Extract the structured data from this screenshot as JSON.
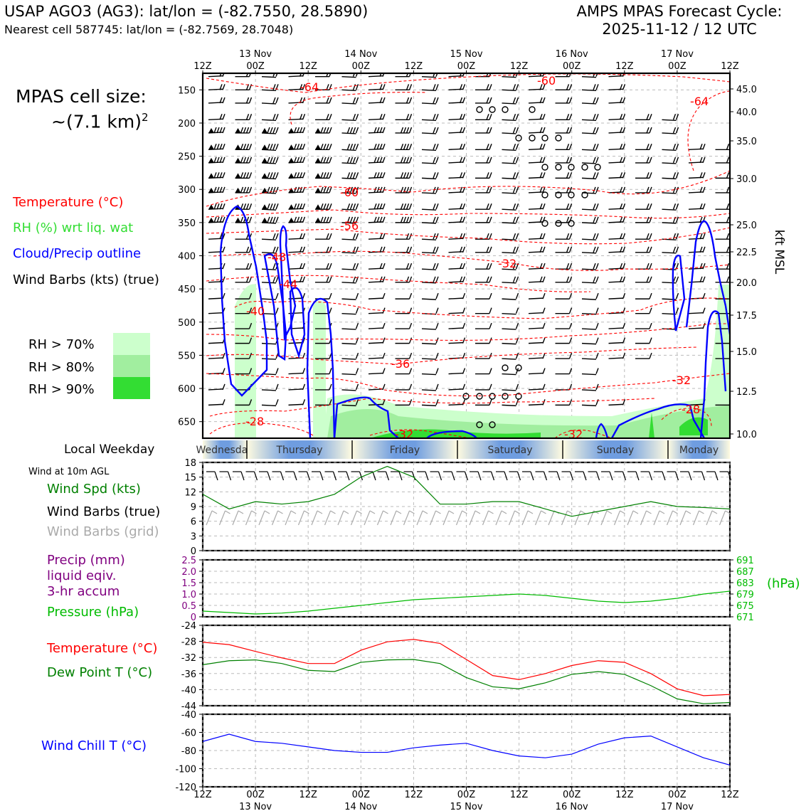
{
  "header": {
    "station_title": "USAP AGO3 (AG3): lat/lon = (-82.7550, 28.5890)",
    "nearest_cell": "Nearest cell 587745: lat/lon = (-82.7569, 28.7048)",
    "forecast_title": "AMPS MPAS Forecast Cycle:",
    "forecast_cycle": "2025-11-12 / 12 UTC"
  },
  "cell_size": {
    "line1": "MPAS cell size:",
    "line2": "~(7.1 km)",
    "exponent": "2"
  },
  "upper_legend": {
    "temperature": "Temperature (°C)",
    "rh": "RH (%) wrt liq. wat",
    "cloud": "Cloud/Precip outline",
    "wind": "Wind Barbs (kts) (true)",
    "rh70": "RH > 70%",
    "rh80": "RH > 80%",
    "rh90": "RH > 90%"
  },
  "colors": {
    "temperature": "#ff0000",
    "rh_label": "#33dd33",
    "cloud": "#0000ff",
    "wind_speed": "#008000",
    "precip": "#800080",
    "pressure": "#00bb00",
    "dewpoint": "#008000",
    "windchill": "#0000ff",
    "rh70": "#ccffcc",
    "rh80": "#a1ee9f",
    "rh90": "#33dd33",
    "grid_barb": "#aaaaaa"
  },
  "time_axis": {
    "top_ticks": [
      "12Z",
      "00Z",
      "12Z",
      "00Z",
      "12Z",
      "00Z",
      "12Z",
      "00Z",
      "12Z",
      "00Z",
      "12Z"
    ],
    "dates": [
      "13 Nov",
      "14 Nov",
      "15 Nov",
      "16 Nov",
      "17 Nov"
    ],
    "bottom_ticks": [
      "12Z",
      "00Z",
      "12Z",
      "00Z",
      "12Z",
      "00Z",
      "12Z",
      "00Z",
      "12Z",
      "00Z",
      "12Z"
    ]
  },
  "pressure_axis": {
    "left_ticks": [
      "150",
      "200",
      "250",
      "300",
      "350",
      "400",
      "450",
      "500",
      "550",
      "600",
      "650"
    ],
    "right_ticks": [
      "45.0",
      "40.0",
      "35.0",
      "30.0",
      "25.0",
      "22.5",
      "20.0",
      "17.5",
      "15.0",
      "12.5",
      "10.0"
    ],
    "right_label": "kft MSL"
  },
  "temperature_contour_labels": [
    "-64",
    "-60",
    "-64",
    "-60",
    "-56",
    "-48",
    "-44",
    "-40",
    "-32",
    "-36",
    "-32",
    "-28",
    "-28",
    "-32",
    "-32"
  ],
  "weekday_bar": {
    "label": "Local Weekday",
    "days": [
      "Wednesday",
      "Thursday",
      "Friday",
      "Saturday",
      "Sunday",
      "Monday"
    ]
  },
  "panels": {
    "wind": {
      "caption": "Wind at 10m AGL",
      "speed_label": "Wind Spd (kts)",
      "barbs_true_label": "Wind Barbs (true)",
      "barbs_grid_label": "Wind Barbs (grid)",
      "yticks": [
        "0",
        "3",
        "6",
        "9",
        "12",
        "15",
        "18"
      ]
    },
    "precip": {
      "label1": "Precip (mm)",
      "label2": "liquid eqiv.",
      "label3": "3-hr accum",
      "pressure_label": "Pressure (hPa)",
      "left_ticks": [
        "0",
        "0.5",
        "1.0",
        "1.5",
        "2.0",
        "2.5"
      ],
      "right_ticks": [
        "671",
        "675",
        "679",
        "683",
        "687",
        "691"
      ],
      "right_unit": "(hPa)"
    },
    "temp": {
      "temp_label": "Temperature (°C)",
      "dew_label": "Dew Point T (°C)",
      "yticks": [
        "-44",
        "-40",
        "-36",
        "-32",
        "-28",
        "-24"
      ]
    },
    "windchill": {
      "label": "Wind Chill T (°C)",
      "yticks": [
        "-120",
        "-100",
        "-80",
        "-60",
        "-40"
      ]
    }
  },
  "chart_data": {
    "type": "line",
    "x_hours": [
      0,
      6,
      12,
      18,
      24,
      30,
      36,
      42,
      48,
      54,
      60,
      66,
      72,
      78,
      84,
      90,
      96,
      102,
      108,
      114,
      120
    ],
    "x_ticks_hours": [
      0,
      12,
      24,
      36,
      48,
      60,
      72,
      84,
      96,
      108,
      120
    ],
    "wind_speed_kts": {
      "ylim": [
        0,
        18
      ],
      "values": [
        11.5,
        8.5,
        10,
        9.5,
        10,
        11.5,
        15,
        17.2,
        15,
        9.5,
        9.5,
        10,
        10,
        8.5,
        7,
        8,
        9,
        10,
        9,
        8.8,
        8.5
      ]
    },
    "pressure_hpa": {
      "ylim": [
        671,
        691
      ],
      "values": [
        673,
        672.5,
        672,
        672.3,
        673,
        674,
        675,
        676,
        677,
        677.5,
        678,
        678.5,
        679,
        678.5,
        677.5,
        676.5,
        676,
        676.5,
        677.5,
        679,
        680
      ]
    },
    "precip_mm": {
      "ylim": [
        0,
        2.5
      ],
      "values": []
    },
    "temperature_c": {
      "ylim": [
        -44,
        -24
      ],
      "values": [
        -28.2,
        -28.8,
        -30.5,
        -32.1,
        -33.5,
        -33.5,
        -30.2,
        -28.1,
        -27.5,
        -28.5,
        -32.5,
        -36.5,
        -37.5,
        -36,
        -34,
        -32.8,
        -33.2,
        -36,
        -39.8,
        -41.5,
        -41.2
      ]
    },
    "dewpoint_c": {
      "ylim": [
        -44,
        -24
      ],
      "values": [
        -33.8,
        -32.8,
        -32.6,
        -33.5,
        -35.2,
        -35.5,
        -33.2,
        -32.6,
        -32.5,
        -33.5,
        -37,
        -39.3,
        -39.8,
        -38.3,
        -36.2,
        -35.5,
        -36.2,
        -39,
        -42.3,
        -43.5,
        -43.2
      ]
    },
    "windchill_c": {
      "ylim": [
        -120,
        -40
      ],
      "values": [
        -70,
        -62,
        -70,
        -72,
        -76,
        -80,
        -82,
        -82,
        -77,
        -74,
        -72,
        -80,
        -86,
        -88,
        -84,
        -73,
        -66,
        -64,
        -76,
        -88,
        -96
      ]
    }
  }
}
